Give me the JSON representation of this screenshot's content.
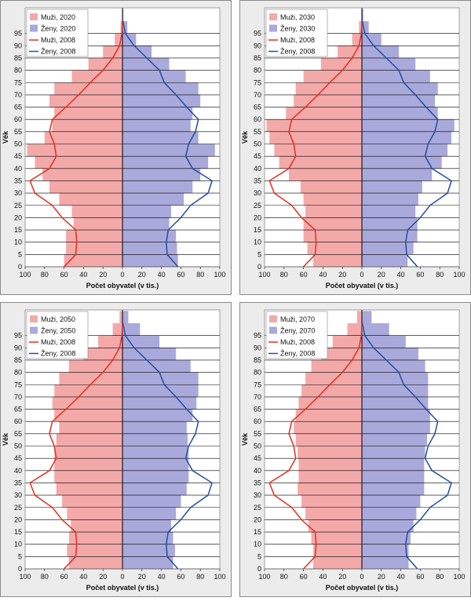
{
  "chart_data": [
    {
      "type": "pyramid",
      "xlabel": "Počet obyvatel (v tis.)",
      "ylabel": "Věk",
      "x": [
        0,
        5,
        10,
        15,
        20,
        25,
        30,
        35,
        40,
        45,
        50,
        55,
        60,
        65,
        70,
        75,
        80,
        85,
        90,
        95,
        100
      ],
      "xlim": [
        -100,
        100
      ],
      "ylim": [
        0,
        100
      ],
      "xticks": [
        {
          "value": -100,
          "label": "100"
        },
        {
          "value": -80,
          "label": "80"
        },
        {
          "value": -60,
          "label": "60"
        },
        {
          "value": -40,
          "label": "40"
        },
        {
          "value": -20,
          "label": "20"
        },
        0,
        20,
        40,
        60,
        80,
        100
      ],
      "yticks": [
        0,
        5,
        10,
        15,
        20,
        25,
        30,
        35,
        40,
        45,
        50,
        55,
        60,
        65,
        70,
        75,
        80,
        85,
        90,
        95
      ],
      "grid": true,
      "series": [
        {
          "name": "Muži, 2020",
          "color": "#f4a9a9",
          "style": "area",
          "side": "left",
          "values": [
            60,
            58,
            58,
            50,
            52,
            65,
            75,
            82,
            90,
            98,
            80,
            72,
            70,
            75,
            70,
            52,
            35,
            20,
            8,
            2,
            0.3
          ]
        },
        {
          "name": "Ženy, 2020",
          "color": "#a9a9db",
          "style": "area",
          "side": "right",
          "values": [
            57,
            56,
            55,
            48,
            50,
            63,
            72,
            80,
            88,
            95,
            78,
            70,
            72,
            80,
            78,
            65,
            48,
            30,
            14,
            5,
            1
          ]
        },
        {
          "name": "Muži, 2008",
          "color": "#e03020",
          "style": "line",
          "side": "left",
          "values": [
            60,
            48,
            47,
            48,
            62,
            72,
            90,
            95,
            75,
            68,
            70,
            75,
            72,
            58,
            45,
            33,
            20,
            10,
            3,
            0.5,
            0
          ]
        },
        {
          "name": "Ženy, 2008",
          "color": "#2050a0",
          "style": "line",
          "side": "right",
          "values": [
            57,
            46,
            45,
            47,
            60,
            70,
            88,
            92,
            72,
            65,
            68,
            75,
            78,
            66,
            55,
            43,
            38,
            25,
            12,
            3,
            0.5
          ]
        }
      ]
    },
    {
      "type": "pyramid",
      "xlabel": "Počet obyvatel (v tis.)",
      "ylabel": "Věk",
      "x": [
        0,
        5,
        10,
        15,
        20,
        25,
        30,
        35,
        40,
        45,
        50,
        55,
        60,
        65,
        70,
        75,
        80,
        85,
        90,
        95,
        100
      ],
      "xlim": [
        -100,
        100
      ],
      "ylim": [
        0,
        100
      ],
      "xticks": [
        {
          "value": -100,
          "label": "100"
        },
        {
          "value": -80,
          "label": "80"
        },
        {
          "value": -60,
          "label": "60"
        },
        {
          "value": -40,
          "label": "40"
        },
        {
          "value": -20,
          "label": "20"
        },
        0,
        20,
        40,
        60,
        80,
        100
      ],
      "yticks": [
        0,
        5,
        10,
        15,
        20,
        25,
        30,
        35,
        40,
        45,
        50,
        55,
        60,
        65,
        70,
        75,
        80,
        85,
        90,
        95
      ],
      "grid": true,
      "series": [
        {
          "name": "Muži, 2030",
          "color": "#f4a9a9",
          "style": "area",
          "side": "left",
          "values": [
            50,
            56,
            60,
            60,
            58,
            60,
            63,
            75,
            85,
            90,
            95,
            98,
            78,
            70,
            68,
            60,
            42,
            25,
            10,
            3,
            0.5
          ]
        },
        {
          "name": "Ženy, 2030",
          "color": "#a9a9db",
          "style": "area",
          "side": "right",
          "values": [
            47,
            53,
            57,
            57,
            55,
            58,
            62,
            72,
            82,
            88,
            92,
            95,
            78,
            75,
            78,
            70,
            55,
            38,
            20,
            7,
            1.5
          ]
        },
        {
          "name": "Muži, 2008",
          "color": "#e03020",
          "style": "line",
          "side": "left",
          "values": [
            60,
            48,
            47,
            48,
            62,
            72,
            90,
            95,
            75,
            68,
            70,
            75,
            72,
            58,
            45,
            33,
            20,
            10,
            3,
            0.5,
            0
          ]
        },
        {
          "name": "Ženy, 2008",
          "color": "#2050a0",
          "style": "line",
          "side": "right",
          "values": [
            57,
            46,
            45,
            47,
            60,
            70,
            88,
            92,
            72,
            65,
            68,
            75,
            78,
            66,
            55,
            43,
            38,
            25,
            12,
            3,
            0.5
          ]
        }
      ]
    },
    {
      "type": "pyramid",
      "xlabel": "Počet obyvatel (v tis.)",
      "ylabel": "Věk",
      "x": [
        0,
        5,
        10,
        15,
        20,
        25,
        30,
        35,
        40,
        45,
        50,
        55,
        60,
        65,
        70,
        75,
        80,
        85,
        90,
        95,
        100
      ],
      "xlim": [
        -100,
        100
      ],
      "ylim": [
        0,
        100
      ],
      "xticks": [
        {
          "value": -100,
          "label": "100"
        },
        {
          "value": -80,
          "label": "80"
        },
        {
          "value": -60,
          "label": "60"
        },
        {
          "value": -40,
          "label": "40"
        },
        {
          "value": -20,
          "label": "20"
        },
        0,
        20,
        40,
        60,
        80,
        100
      ],
      "yticks": [
        0,
        5,
        10,
        15,
        20,
        25,
        30,
        35,
        40,
        45,
        50,
        55,
        60,
        65,
        70,
        75,
        80,
        85,
        90,
        95
      ],
      "grid": true,
      "series": [
        {
          "name": "Muži, 2050",
          "color": "#f4a9a9",
          "style": "area",
          "side": "left",
          "values": [
            55,
            57,
            55,
            53,
            57,
            62,
            68,
            70,
            70,
            70,
            68,
            65,
            70,
            72,
            70,
            65,
            55,
            40,
            25,
            10,
            3
          ]
        },
        {
          "name": "Ženy, 2050",
          "color": "#a9a9db",
          "style": "area",
          "side": "right",
          "values": [
            52,
            54,
            52,
            50,
            55,
            60,
            66,
            68,
            68,
            68,
            67,
            66,
            72,
            76,
            78,
            78,
            70,
            55,
            38,
            18,
            6
          ]
        },
        {
          "name": "Muži, 2008",
          "color": "#e03020",
          "style": "line",
          "side": "left",
          "values": [
            60,
            48,
            47,
            48,
            62,
            72,
            90,
            95,
            75,
            68,
            70,
            75,
            72,
            58,
            45,
            33,
            20,
            10,
            3,
            0.5,
            0
          ]
        },
        {
          "name": "Ženy, 2008",
          "color": "#2050a0",
          "style": "line",
          "side": "right",
          "values": [
            57,
            46,
            45,
            47,
            60,
            70,
            88,
            92,
            72,
            65,
            68,
            75,
            78,
            66,
            55,
            43,
            38,
            25,
            12,
            3,
            0.5
          ]
        }
      ]
    },
    {
      "type": "pyramid",
      "xlabel": "Počet obyvatel (v tis.)",
      "ylabel": "Věk",
      "x": [
        0,
        5,
        10,
        15,
        20,
        25,
        30,
        35,
        40,
        45,
        50,
        55,
        60,
        65,
        70,
        75,
        80,
        85,
        90,
        95,
        100
      ],
      "xlim": [
        -100,
        100
      ],
      "ylim": [
        0,
        100
      ],
      "xticks": [
        {
          "value": -100,
          "label": "100"
        },
        {
          "value": -80,
          "label": "80"
        },
        {
          "value": -60,
          "label": "60"
        },
        {
          "value": -40,
          "label": "40"
        },
        {
          "value": -20,
          "label": "20"
        },
        0,
        20,
        40,
        60,
        80,
        100
      ],
      "yticks": [
        0,
        5,
        10,
        15,
        20,
        25,
        30,
        35,
        40,
        45,
        50,
        55,
        60,
        65,
        70,
        75,
        80,
        85,
        90,
        95
      ],
      "grid": true,
      "series": [
        {
          "name": "Muži, 2070",
          "color": "#f4a9a9",
          "style": "area",
          "side": "left",
          "values": [
            50,
            50,
            52,
            55,
            58,
            62,
            66,
            65,
            65,
            66,
            68,
            70,
            68,
            65,
            62,
            58,
            52,
            42,
            30,
            15,
            5
          ]
        },
        {
          "name": "Ženy, 2070",
          "color": "#a9a9db",
          "style": "area",
          "side": "right",
          "values": [
            48,
            48,
            50,
            53,
            56,
            60,
            64,
            64,
            64,
            65,
            67,
            70,
            70,
            68,
            68,
            68,
            65,
            58,
            45,
            28,
            10
          ]
        },
        {
          "name": "Muži, 2008",
          "color": "#e03020",
          "style": "line",
          "side": "left",
          "values": [
            60,
            48,
            47,
            48,
            62,
            72,
            90,
            95,
            75,
            68,
            70,
            75,
            72,
            58,
            45,
            33,
            20,
            10,
            3,
            0.5,
            0
          ]
        },
        {
          "name": "Ženy, 2008",
          "color": "#2050a0",
          "style": "line",
          "side": "right",
          "values": [
            57,
            46,
            45,
            47,
            60,
            70,
            88,
            92,
            72,
            65,
            68,
            75,
            78,
            66,
            55,
            43,
            38,
            25,
            12,
            3,
            0.5
          ]
        }
      ]
    }
  ]
}
